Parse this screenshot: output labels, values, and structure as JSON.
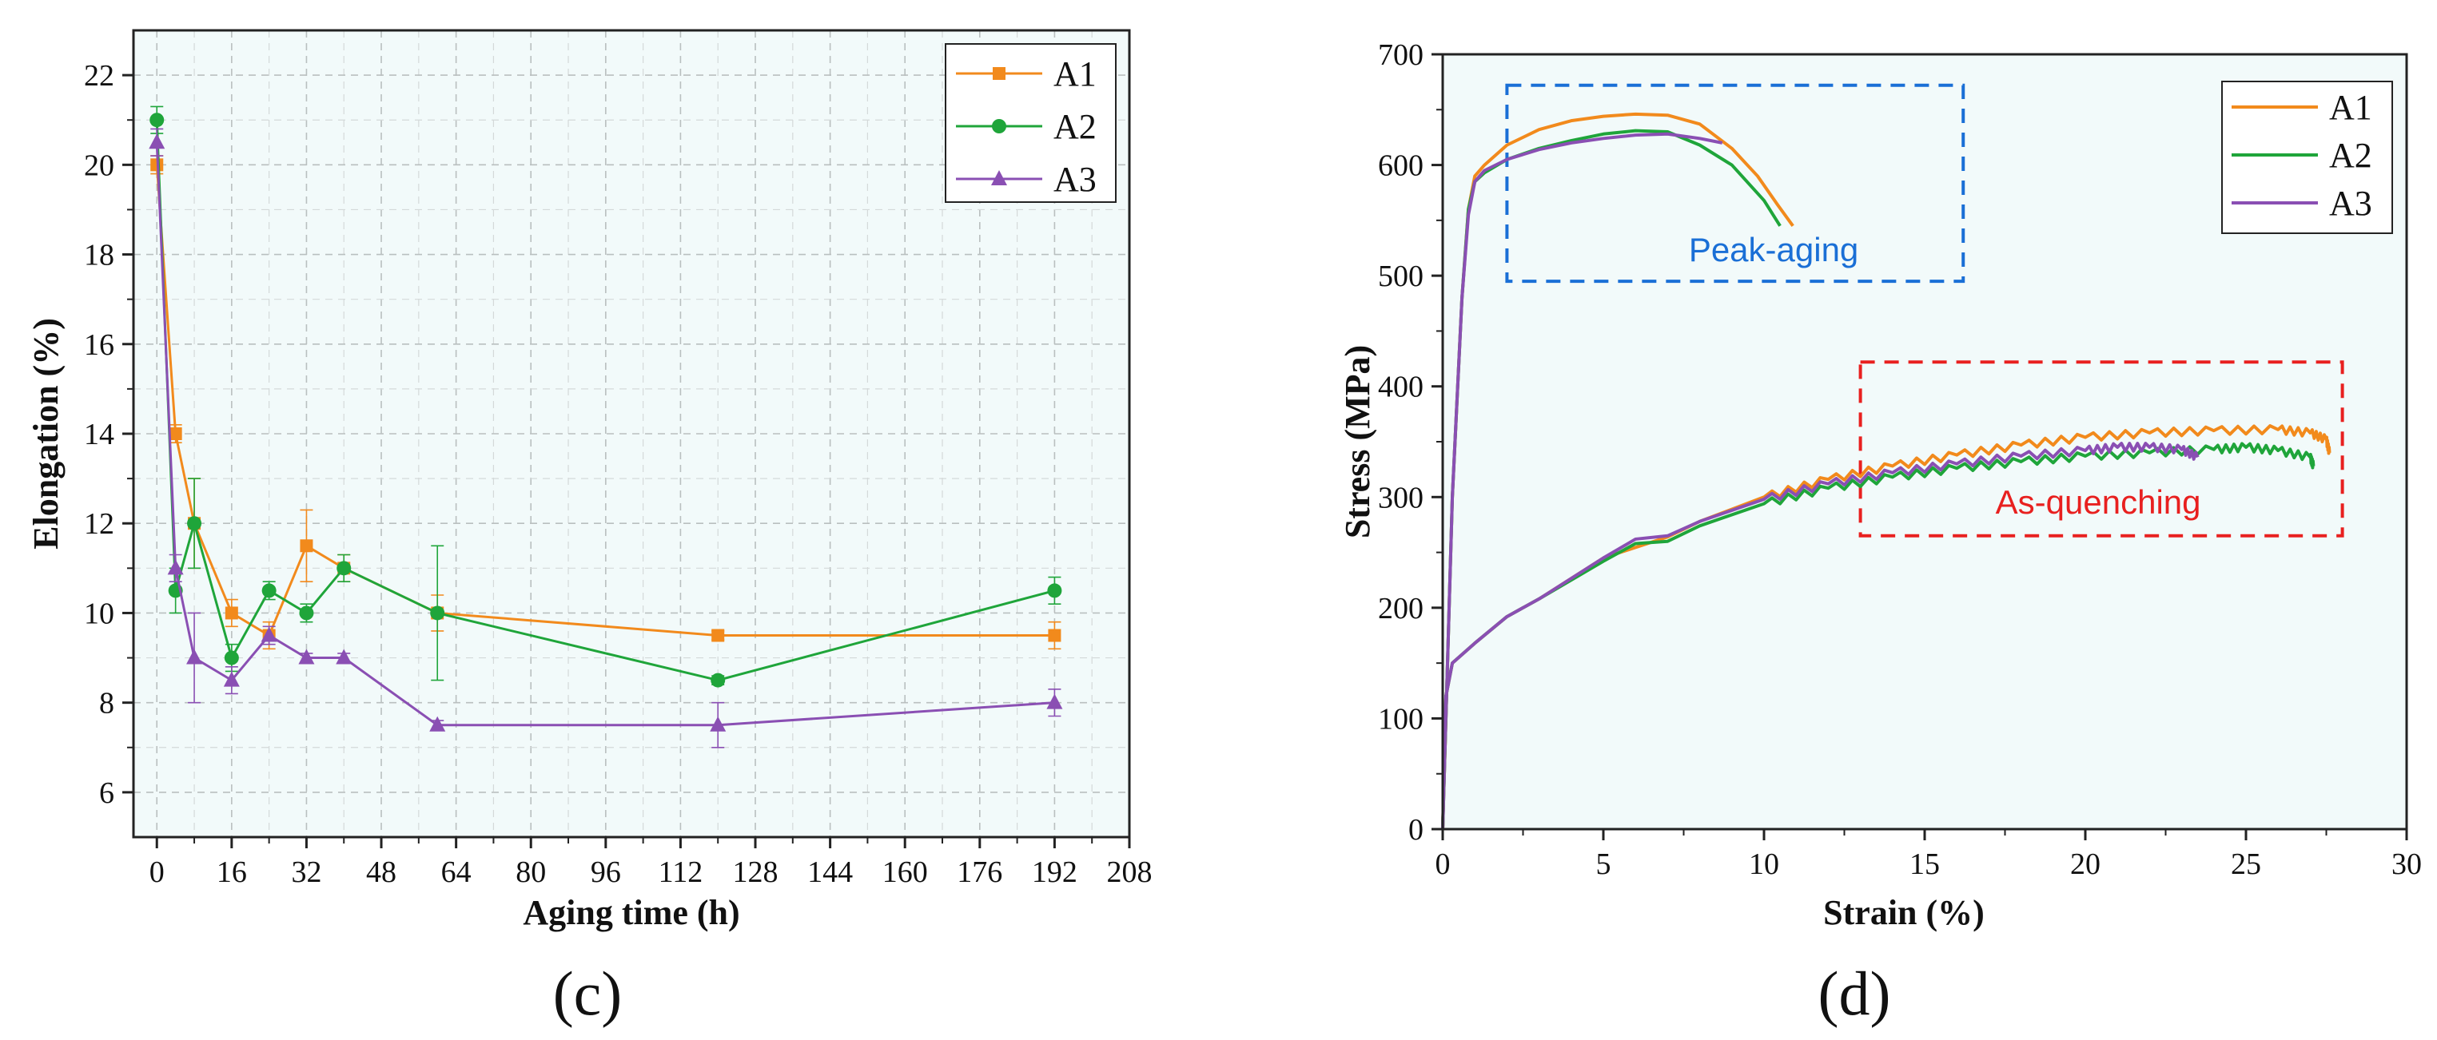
{
  "chart_data": [
    {
      "panel": "(c)",
      "type": "line",
      "xlabel": "Aging time (h)",
      "ylabel": "Elongation (%)",
      "xlim": [
        -5,
        208
      ],
      "ylim": [
        5,
        23
      ],
      "xticks": [
        0,
        16,
        32,
        48,
        64,
        80,
        96,
        112,
        128,
        144,
        160,
        176,
        192,
        208
      ],
      "yticks": [
        6,
        8,
        10,
        12,
        14,
        16,
        18,
        20,
        22
      ],
      "grid": true,
      "legend_position": "top-right",
      "series": [
        {
          "name": "A1",
          "color": "#f28a1c",
          "marker": "square",
          "x": [
            0,
            4,
            8,
            16,
            24,
            32,
            40,
            60,
            120,
            192
          ],
          "y": [
            20,
            14,
            12,
            10,
            9.5,
            11.5,
            11,
            10,
            9.5,
            9.5
          ],
          "err": [
            0.2,
            0.2,
            1.0,
            0.3,
            0.3,
            0.8,
            0.3,
            0.4,
            0.1,
            0.3
          ]
        },
        {
          "name": "A2",
          "color": "#1fa53a",
          "marker": "circle",
          "x": [
            0,
            4,
            8,
            16,
            24,
            32,
            40,
            60,
            120,
            192
          ],
          "y": [
            21,
            10.5,
            12,
            9,
            10.5,
            10,
            11,
            10,
            8.5,
            10.5
          ],
          "err": [
            0.3,
            0.5,
            1.0,
            0.3,
            0.2,
            0.2,
            0.3,
            1.5,
            0.1,
            0.3
          ]
        },
        {
          "name": "A3",
          "color": "#8a4fb3",
          "marker": "triangle",
          "x": [
            0,
            4,
            8,
            16,
            24,
            32,
            40,
            60,
            120,
            192
          ],
          "y": [
            20.5,
            11,
            9,
            8.5,
            9.5,
            9,
            9,
            7.5,
            7.5,
            8
          ],
          "err": [
            0.3,
            0.3,
            1.0,
            0.3,
            0.2,
            0.1,
            0.1,
            0.1,
            0.5,
            0.3
          ]
        }
      ]
    },
    {
      "panel": "(d)",
      "type": "line",
      "xlabel": "Strain (%)",
      "ylabel": "Stress (MPa)",
      "xlim": [
        0,
        30
      ],
      "ylim": [
        0,
        700
      ],
      "xticks": [
        0,
        5,
        10,
        15,
        20,
        25,
        30
      ],
      "yticks": [
        0,
        100,
        200,
        300,
        400,
        500,
        600,
        700
      ],
      "grid": false,
      "legend_position": "top-right",
      "annotations": [
        {
          "text": "Peak-aging",
          "color": "#1a6fd6",
          "box_x": [
            2,
            16.2
          ],
          "box_y": [
            495,
            672
          ]
        },
        {
          "text": "As-quenching",
          "color": "#e8201f",
          "box_x": [
            13,
            28
          ],
          "box_y": [
            265,
            422
          ]
        }
      ],
      "series": [
        {
          "name": "A1",
          "color": "#f28a1c",
          "x": [
            0,
            0.15,
            0.3,
            0.6,
            0.8,
            1.0,
            1.3,
            2,
            3,
            4,
            5,
            6,
            7,
            8,
            9,
            9.8,
            10.4,
            10.9
          ],
          "y": [
            0,
            150,
            300,
            480,
            560,
            590,
            600,
            618,
            632,
            640,
            644,
            646,
            645,
            637,
            615,
            590,
            565,
            545
          ]
        },
        {
          "name": "A2",
          "color": "#1fa53a",
          "x": [
            0,
            0.15,
            0.3,
            0.6,
            0.8,
            1.0,
            1.3,
            2,
            3,
            4,
            5,
            6,
            7,
            8,
            9,
            10,
            10.5
          ],
          "y": [
            0,
            150,
            300,
            480,
            560,
            585,
            593,
            605,
            615,
            622,
            628,
            631,
            630,
            618,
            600,
            568,
            545
          ]
        },
        {
          "name": "A3",
          "color": "#8a4fb3",
          "x": [
            0,
            0.15,
            0.3,
            0.6,
            0.8,
            1.0,
            1.3,
            2,
            3,
            4,
            5,
            6,
            7,
            8,
            8.7
          ],
          "y": [
            0,
            150,
            300,
            480,
            555,
            585,
            595,
            605,
            614,
            620,
            624,
            627,
            628,
            624,
            620
          ]
        },
        {
          "name": "A1 (as-quenching)",
          "color": "#f28a1c",
          "x": [
            0,
            0.1,
            0.3,
            1,
            2,
            3,
            5,
            7,
            8,
            10,
            12,
            14,
            16,
            18,
            20,
            22,
            24,
            26,
            27,
            27.5,
            27.6
          ],
          "y": [
            0,
            120,
            150,
            168,
            192,
            208,
            245,
            264,
            278,
            300,
            316,
            328,
            338,
            347,
            354,
            358,
            360,
            361,
            358,
            352,
            340
          ]
        },
        {
          "name": "A2 (as-quenching)",
          "color": "#1fa53a",
          "x": [
            0,
            0.1,
            0.3,
            1,
            2,
            3,
            5,
            6,
            7,
            8,
            10,
            12,
            14,
            16,
            18,
            20,
            22,
            24,
            25,
            26,
            27,
            27.1
          ],
          "y": [
            0,
            120,
            150,
            168,
            192,
            208,
            242,
            258,
            260,
            274,
            294,
            308,
            318,
            326,
            332,
            337,
            340,
            343,
            345,
            342,
            336,
            328
          ]
        },
        {
          "name": "A3 (as-quenching)",
          "color": "#8a4fb3",
          "x": [
            0,
            0.1,
            0.3,
            1,
            2,
            3,
            5,
            6,
            7,
            8,
            10,
            12,
            14,
            16,
            18,
            20,
            21,
            22,
            23,
            23.5
          ],
          "y": [
            0,
            120,
            150,
            168,
            192,
            208,
            245,
            262,
            265,
            278,
            298,
            312,
            322,
            330,
            337,
            342,
            345,
            345,
            343,
            336
          ]
        }
      ]
    }
  ],
  "labels": {
    "panel_c": "(c)",
    "panel_d": "(d)"
  }
}
